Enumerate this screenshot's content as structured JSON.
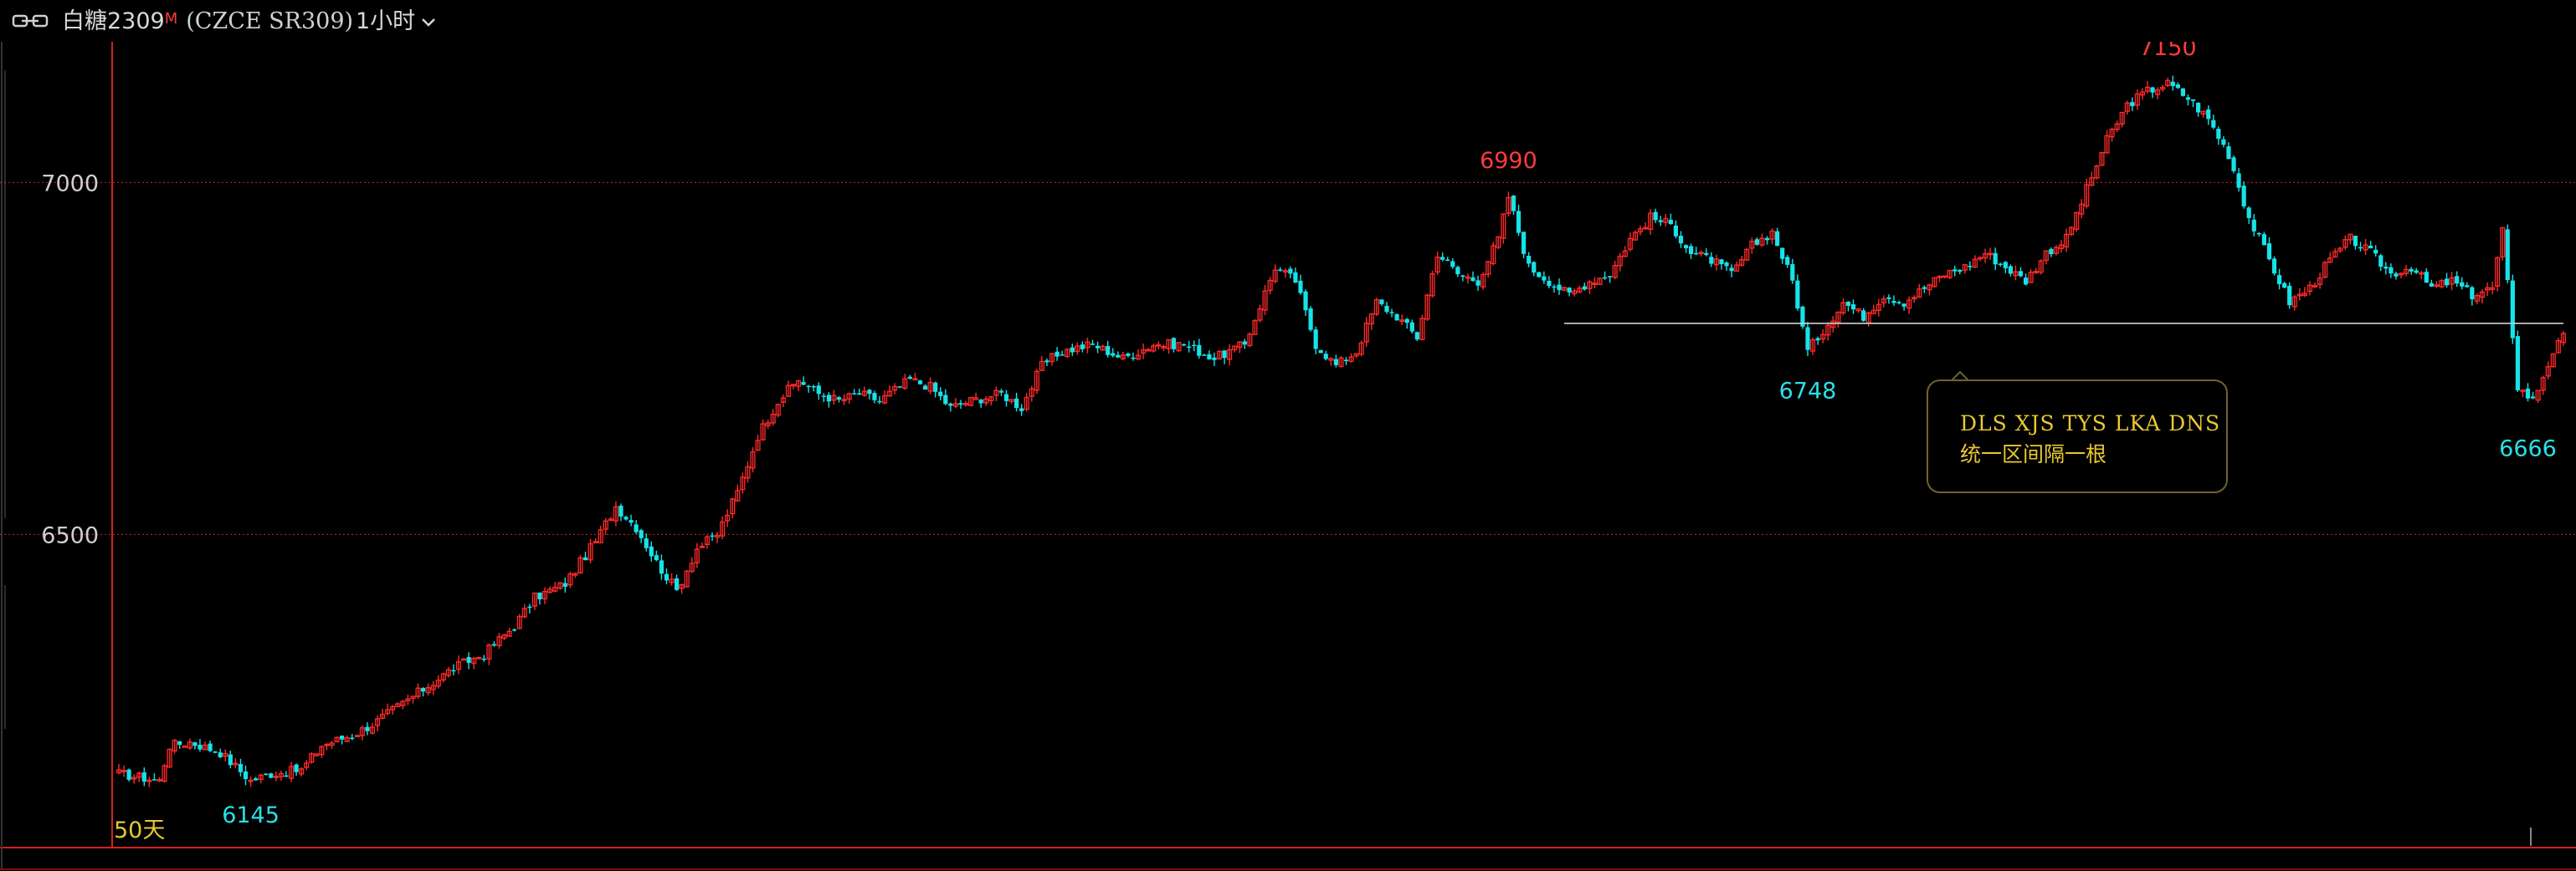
{
  "header": {
    "title": "白糖2309",
    "title_sup": "M",
    "code": "(CZCE SR309)",
    "interval": "1小时",
    "link_icon": "link-icon",
    "dropdown_icon": "chevron-down-icon"
  },
  "annotation": {
    "line1": "DLS XJS TYS LKA DNS",
    "line2": "统一区间隔一根"
  },
  "colors": {
    "background": "#000000",
    "up": "#ff2a2a",
    "down": "#16e3e8",
    "grid": "#ff2a2a",
    "border": "#d81e1e",
    "support_line": "#d0d0d0",
    "high_label": "#ff3b3b",
    "low_label": "#29e0e6",
    "note_text": "#e8c832"
  },
  "chart_data": {
    "type": "candlestick",
    "interval": "1小时",
    "y_ticks": [
      6500,
      7000
    ],
    "ylim": [
      6055,
      7200
    ],
    "grid": true,
    "period_label": "50天",
    "high_low_labels": [
      {
        "bar": 26,
        "value": 6145,
        "kind": "low"
      },
      {
        "bar": 274,
        "value": 6990,
        "kind": "high"
      },
      {
        "bar": 333,
        "value": 6748,
        "kind": "low"
      },
      {
        "bar": 404,
        "value": 7150,
        "kind": "high"
      },
      {
        "bar": 475,
        "value": 6666,
        "kind": "low"
      }
    ],
    "support_line": {
      "value": 6800,
      "from_bar": 285,
      "to_bar": 482
    },
    "waypoints": [
      [
        0,
        6160
      ],
      [
        4,
        6155
      ],
      [
        8,
        6150
      ],
      [
        10,
        6200
      ],
      [
        14,
        6205
      ],
      [
        20,
        6190
      ],
      [
        26,
        6150
      ],
      [
        30,
        6160
      ],
      [
        36,
        6165
      ],
      [
        40,
        6200
      ],
      [
        46,
        6215
      ],
      [
        50,
        6230
      ],
      [
        56,
        6260
      ],
      [
        62,
        6290
      ],
      [
        66,
        6310
      ],
      [
        72,
        6330
      ],
      [
        78,
        6370
      ],
      [
        82,
        6410
      ],
      [
        88,
        6430
      ],
      [
        94,
        6490
      ],
      [
        98,
        6540
      ],
      [
        102,
        6510
      ],
      [
        106,
        6460
      ],
      [
        110,
        6420
      ],
      [
        114,
        6480
      ],
      [
        118,
        6500
      ],
      [
        122,
        6560
      ],
      [
        126,
        6640
      ],
      [
        130,
        6690
      ],
      [
        134,
        6720
      ],
      [
        138,
        6700
      ],
      [
        142,
        6690
      ],
      [
        146,
        6700
      ],
      [
        150,
        6690
      ],
      [
        156,
        6720
      ],
      [
        160,
        6710
      ],
      [
        164,
        6680
      ],
      [
        168,
        6690
      ],
      [
        174,
        6700
      ],
      [
        178,
        6680
      ],
      [
        182,
        6740
      ],
      [
        186,
        6760
      ],
      [
        192,
        6770
      ],
      [
        198,
        6750
      ],
      [
        204,
        6770
      ],
      [
        210,
        6770
      ],
      [
        216,
        6750
      ],
      [
        222,
        6770
      ],
      [
        228,
        6880
      ],
      [
        232,
        6860
      ],
      [
        236,
        6770
      ],
      [
        240,
        6740
      ],
      [
        244,
        6760
      ],
      [
        248,
        6830
      ],
      [
        252,
        6810
      ],
      [
        256,
        6780
      ],
      [
        260,
        6900
      ],
      [
        264,
        6870
      ],
      [
        268,
        6860
      ],
      [
        272,
        6920
      ],
      [
        274,
        6980
      ],
      [
        278,
        6880
      ],
      [
        282,
        6860
      ],
      [
        286,
        6840
      ],
      [
        290,
        6860
      ],
      [
        294,
        6870
      ],
      [
        298,
        6920
      ],
      [
        302,
        6950
      ],
      [
        306,
        6940
      ],
      [
        310,
        6900
      ],
      [
        314,
        6890
      ],
      [
        318,
        6870
      ],
      [
        322,
        6910
      ],
      [
        326,
        6930
      ],
      [
        330,
        6860
      ],
      [
        333,
        6760
      ],
      [
        336,
        6790
      ],
      [
        340,
        6830
      ],
      [
        344,
        6810
      ],
      [
        348,
        6840
      ],
      [
        352,
        6830
      ],
      [
        356,
        6850
      ],
      [
        360,
        6870
      ],
      [
        364,
        6880
      ],
      [
        368,
        6900
      ],
      [
        372,
        6880
      ],
      [
        376,
        6860
      ],
      [
        380,
        6900
      ],
      [
        384,
        6920
      ],
      [
        388,
        6990
      ],
      [
        392,
        7060
      ],
      [
        396,
        7110
      ],
      [
        400,
        7130
      ],
      [
        404,
        7140
      ],
      [
        408,
        7120
      ],
      [
        412,
        7090
      ],
      [
        416,
        7040
      ],
      [
        420,
        6950
      ],
      [
        424,
        6890
      ],
      [
        428,
        6830
      ],
      [
        432,
        6850
      ],
      [
        436,
        6890
      ],
      [
        440,
        6920
      ],
      [
        444,
        6900
      ],
      [
        448,
        6870
      ],
      [
        452,
        6880
      ],
      [
        456,
        6850
      ],
      [
        460,
        6860
      ],
      [
        464,
        6840
      ],
      [
        468,
        6850
      ],
      [
        470,
        6930
      ],
      [
        473,
        6710
      ],
      [
        476,
        6690
      ],
      [
        480,
        6760
      ],
      [
        482,
        6780
      ]
    ]
  }
}
